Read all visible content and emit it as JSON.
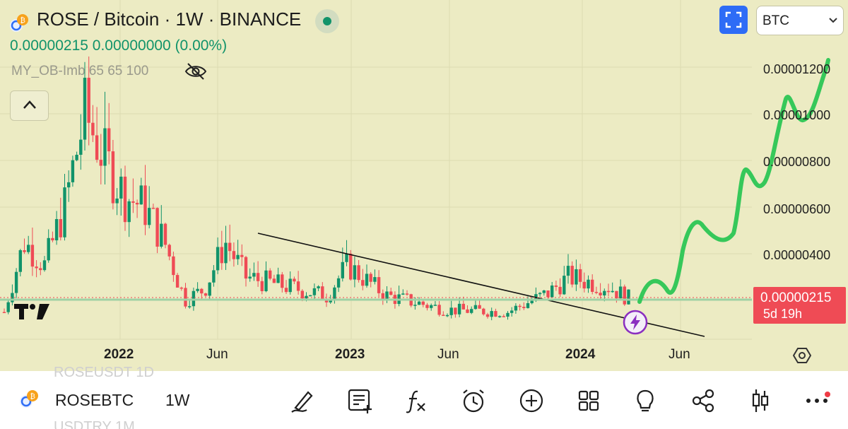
{
  "header": {
    "title": "ROSE / Bitcoin · 1W · BINANCE",
    "ohlc": "0.00000215  0.00000000 (0.00%)",
    "indicator": "MY_OB-Imb 65 65 100",
    "currency_select": "BTC"
  },
  "price_axis": {
    "labels": [
      "0.00001200",
      "0.00001000",
      "0.00000800",
      "0.00000600",
      "0.00000400"
    ],
    "current_price": "0.00000215",
    "countdown": "5d 19h"
  },
  "time_axis": {
    "labels": [
      {
        "text": "2022",
        "bold": true
      },
      {
        "text": "Jun",
        "bold": false
      },
      {
        "text": "2023",
        "bold": true
      },
      {
        "text": "Jun",
        "bold": false
      },
      {
        "text": "2024",
        "bold": true
      },
      {
        "text": "Jun",
        "bold": false
      }
    ]
  },
  "chart_data": {
    "type": "candlestick",
    "symbol": "ROSE / Bitcoin",
    "interval": "1W",
    "exchange": "BINANCE",
    "ylim": [
      0,
      1.38e-05
    ],
    "y_ticks": [
      4e-06,
      6e-06,
      8e-06,
      1e-05,
      1.2e-05
    ],
    "x_ticks": [
      "2022",
      "Jun",
      "2023",
      "Jun",
      "2024",
      "Jun"
    ],
    "last_price": 2.15e-06,
    "close_path_approx": [
      [
        "2021-09",
        1.5e-06
      ],
      [
        "2021-10",
        4.5e-06
      ],
      [
        "2021-11",
        3.5e-06
      ],
      [
        "2021-12",
        6e-06
      ],
      [
        "2022-01",
        1e-05
      ],
      [
        "2022-02",
        8e-06
      ],
      [
        "2022-03",
        6.5e-06
      ],
      [
        "2022-04",
        6e-06
      ],
      [
        "2022-05",
        4.5e-06
      ],
      [
        "2022-06",
        2e-06
      ],
      [
        "2022-07",
        2.5e-06
      ],
      [
        "2022-08",
        4.5e-06
      ],
      [
        "2022-09",
        3e-06
      ],
      [
        "2022-11",
        2.6e-06
      ],
      [
        "2023-01",
        2.2e-06
      ],
      [
        "2023-02",
        3.5e-06
      ],
      [
        "2023-04",
        2.2e-06
      ],
      [
        "2023-07",
        1.6e-06
      ],
      [
        "2023-10",
        1.5e-06
      ],
      [
        "2023-12",
        2.3e-06
      ],
      [
        "2024-01",
        3e-06
      ],
      [
        "2024-03",
        2.6e-06
      ],
      [
        "2024-04",
        2.1e-06
      ]
    ],
    "projection_approx": [
      [
        "2024-04",
        2e-06
      ],
      [
        "2024-05",
        3e-06
      ],
      [
        "2024-06",
        2.5e-06
      ],
      [
        "2024-07",
        5.5e-06
      ],
      [
        "2024-08",
        4.5e-06
      ],
      [
        "2024-09",
        7.8e-06
      ],
      [
        "2024-10",
        6.8e-06
      ],
      [
        "2024-11",
        1.1e-05
      ],
      [
        "2024-12",
        9.8e-06
      ],
      [
        "2025-01",
        1.33e-05
      ]
    ],
    "colors": {
      "up": "#11936a",
      "down": "#ef4b55",
      "projection": "#36c85a",
      "trendline": "#111111"
    }
  },
  "toolbar": {
    "ghost_top": "ROSEUSDT  1D",
    "ghost_bottom": "USDTRY  1M",
    "symbol": "ROSEBTC",
    "interval": "1W",
    "icons": [
      "draw-icon",
      "notes-icon",
      "function-icon",
      "alarm-icon",
      "add-icon",
      "grid-icon",
      "idea-icon",
      "share-icon",
      "candles-icon",
      "more-icon"
    ]
  },
  "colors": {
    "background": "#ecebc3",
    "accent": "#2e6cf6",
    "up": "#11936a",
    "down": "#ef4b55"
  }
}
